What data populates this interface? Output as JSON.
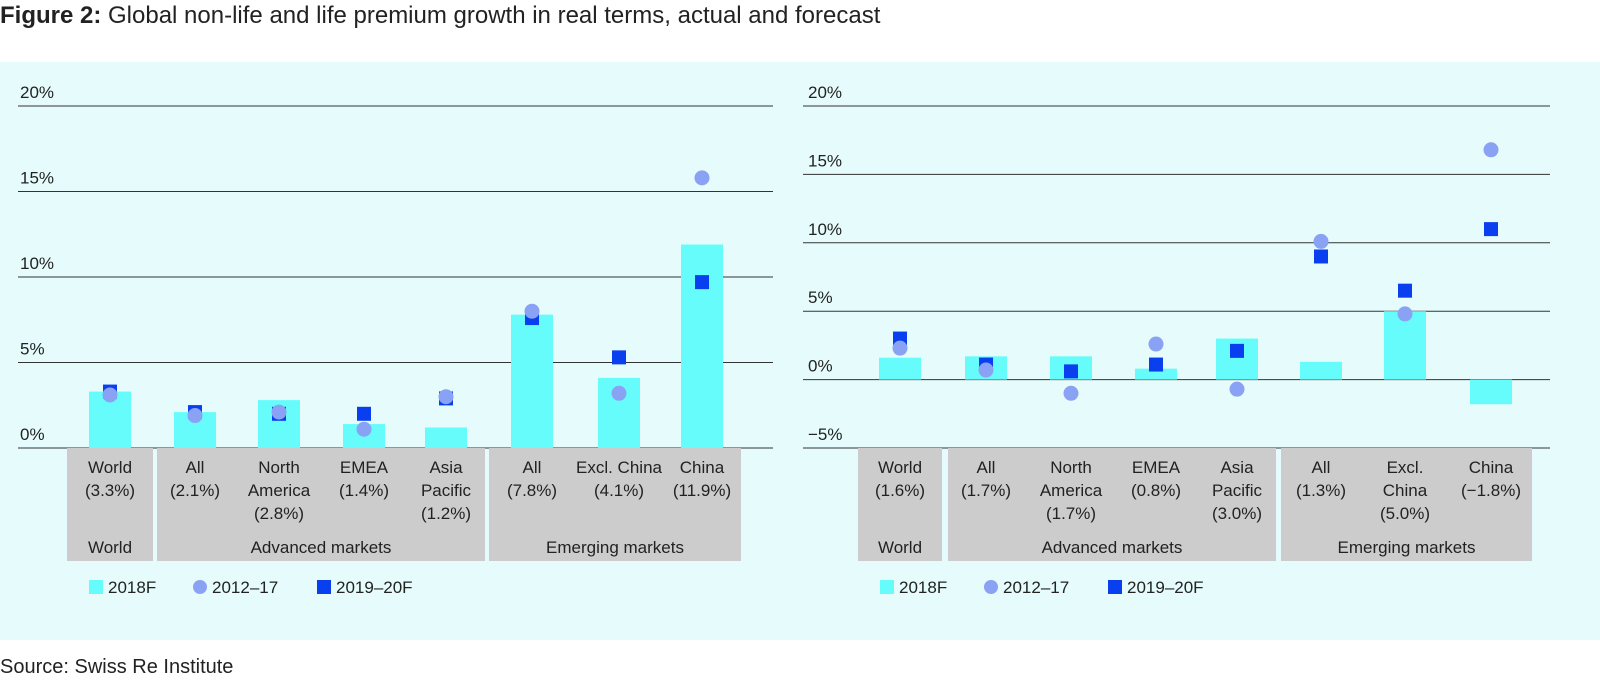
{
  "figure": {
    "label": "Figure 2:",
    "title": "Global non-life and life premium growth in real terms, actual and forecast",
    "source": "Source: Swiss Re Institute"
  },
  "colors": {
    "panel_bg": "#e6fcfc",
    "bar": "#66fcfc",
    "circle": "#8aa2f4",
    "square": "#0a3ff0",
    "label_box": "#cccccc",
    "gridline": "#333333"
  },
  "legend": {
    "items": [
      {
        "label": "2018F",
        "symbol": "bar"
      },
      {
        "label": "2012–17",
        "symbol": "circle"
      },
      {
        "label": "2019–20F",
        "symbol": "square"
      }
    ]
  },
  "chart_data": [
    {
      "type": "bar",
      "title": "",
      "ylim": [
        0,
        20
      ],
      "yticks": [
        0,
        5,
        10,
        15,
        20
      ],
      "ytick_labels": [
        "0%",
        "5%",
        "10%",
        "15%",
        "20%"
      ],
      "grid": true,
      "categories": [
        "World\n(3.3%)",
        "All\n(2.1%)",
        "North\nAmerica\n(2.8%)",
        "EMEA\n(1.4%)",
        "Asia\nPacific\n(1.2%)",
        "All\n(7.8%)",
        "Excl. China\n(4.1%)",
        "China\n(11.9%)"
      ],
      "groups": [
        {
          "label": "World",
          "span": [
            0,
            0
          ]
        },
        {
          "label": "Advanced markets",
          "span": [
            1,
            4
          ]
        },
        {
          "label": "Emerging markets",
          "span": [
            5,
            7
          ]
        }
      ],
      "series": [
        {
          "name": "2018F",
          "kind": "bar",
          "values": [
            3.3,
            2.1,
            2.8,
            1.4,
            1.2,
            7.8,
            4.1,
            11.9
          ]
        },
        {
          "name": "2012–17",
          "kind": "circle",
          "values": [
            3.1,
            1.9,
            2.1,
            1.1,
            3.0,
            8.0,
            3.2,
            15.8
          ]
        },
        {
          "name": "2019–20F",
          "kind": "square",
          "values": [
            3.3,
            2.1,
            2.0,
            2.0,
            2.9,
            7.6,
            5.3,
            9.7
          ]
        }
      ]
    },
    {
      "type": "bar",
      "title": "",
      "ylim": [
        -5,
        20
      ],
      "yticks": [
        -5,
        0,
        5,
        10,
        15,
        20
      ],
      "ytick_labels": [
        "−5%",
        "0%",
        "5%",
        "10%",
        "15%",
        "20%"
      ],
      "grid": true,
      "categories": [
        "World\n(1.6%)",
        "All\n(1.7%)",
        "North\nAmerica\n(1.7%)",
        "EMEA\n(0.8%)",
        "Asia\nPacific\n(3.0%)",
        "All\n(1.3%)",
        "Excl.\nChina\n(5.0%)",
        "China\n(−1.8%)"
      ],
      "groups": [
        {
          "label": "World",
          "span": [
            0,
            0
          ]
        },
        {
          "label": "Advanced markets",
          "span": [
            1,
            4
          ]
        },
        {
          "label": "Emerging markets",
          "span": [
            5,
            7
          ]
        }
      ],
      "series": [
        {
          "name": "2018F",
          "kind": "bar",
          "values": [
            1.6,
            1.7,
            1.7,
            0.8,
            3.0,
            1.3,
            5.0,
            -1.8
          ]
        },
        {
          "name": "2012–17",
          "kind": "circle",
          "values": [
            2.3,
            0.7,
            -1.0,
            2.6,
            -0.7,
            10.1,
            4.8,
            16.8
          ]
        },
        {
          "name": "2019–20F",
          "kind": "square",
          "values": [
            3.0,
            1.1,
            0.6,
            1.1,
            2.1,
            9.0,
            6.5,
            11.0
          ]
        }
      ]
    }
  ]
}
